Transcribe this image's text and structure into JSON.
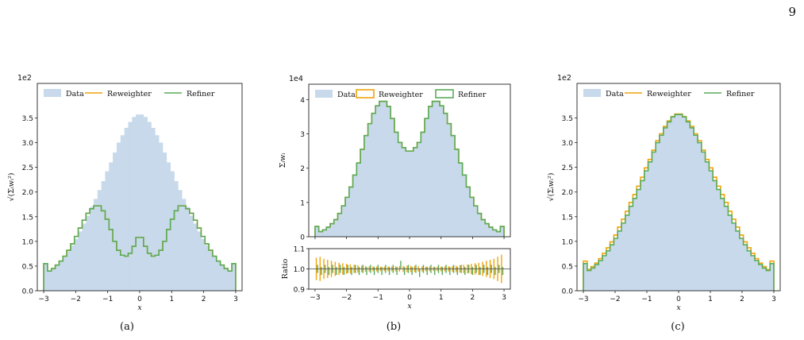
{
  "page_number": "9",
  "colors": {
    "data_fill": "#c7d9ea",
    "reweighter": "#f0a30a",
    "refiner": "#5aab5a"
  },
  "captions": [
    "(a)",
    "(b)",
    "(c)"
  ],
  "chart_data": [
    {
      "id": "a",
      "type": "histogram-step",
      "ylabel": "√(Σᵢwᵢ²)",
      "xlabel": "x",
      "multiplier": "1e2",
      "xlim": [
        -3.2,
        3.2
      ],
      "ylim": [
        0,
        4.2
      ],
      "xticks": [
        -3,
        -2,
        -1,
        0,
        1,
        2,
        3
      ],
      "xtick_labels": [
        "−3",
        "−2",
        "−1",
        "0",
        "1",
        "2",
        "3"
      ],
      "yticks": [
        0,
        0.5,
        1,
        1.5,
        2,
        2.5,
        3,
        3.5
      ],
      "ytick_labels": [
        "0.0",
        "0.5",
        "1.0",
        "1.5",
        "2.0",
        "2.5",
        "3.0",
        "3.5"
      ],
      "legend": [
        "Data",
        "Reweighter",
        "Refiner"
      ],
      "legend_loc": "top",
      "bins": {
        "start": -3,
        "end": 3,
        "count": 50
      },
      "series": [
        {
          "name": "Data",
          "style": "filled",
          "values": [
            0.55,
            0.4,
            0.46,
            0.52,
            0.6,
            0.7,
            0.8,
            0.92,
            1.05,
            1.2,
            1.36,
            1.52,
            1.7,
            1.86,
            2.04,
            2.22,
            2.42,
            2.6,
            2.8,
            3.0,
            3.15,
            3.3,
            3.42,
            3.52,
            3.57,
            3.57,
            3.52,
            3.42,
            3.3,
            3.15,
            3.0,
            2.8,
            2.6,
            2.42,
            2.22,
            2.04,
            1.86,
            1.7,
            1.52,
            1.36,
            1.2,
            1.05,
            0.92,
            0.8,
            0.7,
            0.6,
            0.52,
            0.46,
            0.4,
            0.55
          ]
        },
        {
          "name": "Reweighter",
          "style": "step",
          "values": [
            0.55,
            0.4,
            0.45,
            0.52,
            0.6,
            0.7,
            0.82,
            0.95,
            1.1,
            1.27,
            1.43,
            1.57,
            1.66,
            1.72,
            1.72,
            1.62,
            1.45,
            1.24,
            1.0,
            0.82,
            0.72,
            0.7,
            0.76,
            0.9,
            1.08,
            1.08,
            0.9,
            0.76,
            0.7,
            0.72,
            0.82,
            1.0,
            1.24,
            1.45,
            1.62,
            1.72,
            1.72,
            1.66,
            1.57,
            1.43,
            1.27,
            1.1,
            0.95,
            0.82,
            0.7,
            0.6,
            0.52,
            0.45,
            0.4,
            0.55
          ]
        },
        {
          "name": "Refiner",
          "style": "step",
          "values": [
            0.55,
            0.4,
            0.45,
            0.52,
            0.6,
            0.7,
            0.82,
            0.95,
            1.1,
            1.27,
            1.43,
            1.57,
            1.66,
            1.72,
            1.72,
            1.62,
            1.45,
            1.24,
            1.0,
            0.82,
            0.72,
            0.7,
            0.76,
            0.9,
            1.08,
            1.08,
            0.9,
            0.76,
            0.7,
            0.72,
            0.82,
            1.0,
            1.24,
            1.45,
            1.62,
            1.72,
            1.72,
            1.66,
            1.57,
            1.43,
            1.27,
            1.1,
            0.95,
            0.82,
            0.7,
            0.6,
            0.52,
            0.45,
            0.4,
            0.55
          ]
        }
      ]
    },
    {
      "id": "b",
      "type": "histogram-step",
      "ylabel": "Σᵢwᵢ",
      "xlabel": "x",
      "multiplier": "1e4",
      "xlim": [
        -3.2,
        3.2
      ],
      "ylim": [
        0,
        4.45
      ],
      "xticks": [
        -3,
        -2,
        -1,
        0,
        1,
        2,
        3
      ],
      "xtick_labels": [
        "−3",
        "−2",
        "−1",
        "0",
        "1",
        "2",
        "3"
      ],
      "yticks": [
        0,
        1,
        2,
        3,
        4
      ],
      "ytick_labels": [
        "0",
        "1",
        "2",
        "3",
        "4"
      ],
      "legend": [
        "Data",
        "Reweighter",
        "Refiner"
      ],
      "legend_loc": "top",
      "bins": {
        "start": -3,
        "end": 3,
        "count": 50
      },
      "series": [
        {
          "name": "Data",
          "style": "filled",
          "values": [
            0.3,
            0.15,
            0.2,
            0.28,
            0.38,
            0.5,
            0.68,
            0.9,
            1.15,
            1.45,
            1.8,
            2.15,
            2.55,
            2.95,
            3.3,
            3.6,
            3.82,
            3.95,
            3.95,
            3.8,
            3.45,
            3.05,
            2.75,
            2.6,
            2.5,
            2.5,
            2.6,
            2.75,
            3.05,
            3.45,
            3.8,
            3.95,
            3.95,
            3.82,
            3.6,
            3.3,
            2.95,
            2.55,
            2.15,
            1.8,
            1.45,
            1.15,
            0.9,
            0.68,
            0.5,
            0.38,
            0.28,
            0.2,
            0.15,
            0.3
          ]
        },
        {
          "name": "Reweighter",
          "style": "step",
          "values": [
            0.3,
            0.15,
            0.2,
            0.28,
            0.38,
            0.5,
            0.68,
            0.9,
            1.15,
            1.45,
            1.8,
            2.15,
            2.55,
            2.95,
            3.3,
            3.6,
            3.82,
            3.95,
            3.95,
            3.8,
            3.45,
            3.05,
            2.75,
            2.6,
            2.5,
            2.5,
            2.6,
            2.75,
            3.05,
            3.45,
            3.8,
            3.95,
            3.95,
            3.82,
            3.6,
            3.3,
            2.95,
            2.55,
            2.15,
            1.8,
            1.45,
            1.15,
            0.9,
            0.68,
            0.5,
            0.38,
            0.28,
            0.2,
            0.15,
            0.3
          ]
        },
        {
          "name": "Refiner",
          "style": "step",
          "values": [
            0.3,
            0.15,
            0.2,
            0.28,
            0.38,
            0.5,
            0.68,
            0.9,
            1.15,
            1.45,
            1.8,
            2.15,
            2.55,
            2.95,
            3.3,
            3.6,
            3.82,
            3.95,
            3.95,
            3.8,
            3.45,
            3.05,
            2.75,
            2.6,
            2.5,
            2.5,
            2.6,
            2.75,
            3.05,
            3.45,
            3.8,
            3.95,
            3.95,
            3.82,
            3.6,
            3.3,
            2.95,
            2.55,
            2.15,
            1.8,
            1.45,
            1.15,
            0.9,
            0.68,
            0.5,
            0.38,
            0.28,
            0.2,
            0.15,
            0.3
          ]
        }
      ],
      "ratio_panel": {
        "ylabel": "Ratio",
        "ylim": [
          0.9,
          1.1
        ],
        "yticks": [
          0.9,
          1.0,
          1.1
        ],
        "ytick_labels": [
          "0.9",
          "1.0",
          "1.1"
        ],
        "reference_line": 1.0,
        "series": [
          {
            "name": "Reweighter",
            "style": "errorbar",
            "values": [
              1.0,
              1.0,
              1.0,
              1.0,
              1.0,
              1.0,
              1.0,
              1.0,
              1.0,
              1.0,
              1.0,
              1.0,
              1.0,
              1.0,
              1.0,
              1.0,
              1.0,
              1.0,
              1.0,
              1.0,
              1.0,
              1.0,
              1.0,
              1.0,
              1.0,
              1.0,
              1.0,
              1.0,
              1.0,
              1.0,
              1.0,
              1.0,
              1.0,
              1.0,
              1.0,
              1.0,
              1.0,
              1.0,
              1.0,
              1.0,
              1.0,
              1.0,
              1.0,
              1.0,
              1.0,
              1.0,
              1.0,
              1.0,
              1.0,
              1.0
            ],
            "errors": [
              0.055,
              0.06,
              0.05,
              0.045,
              0.04,
              0.035,
              0.03,
              0.028,
              0.025,
              0.022,
              0.02,
              0.018,
              0.016,
              0.014,
              0.013,
              0.012,
              0.012,
              0.011,
              0.011,
              0.012,
              0.012,
              0.013,
              0.014,
              0.015,
              0.016,
              0.016,
              0.015,
              0.014,
              0.013,
              0.012,
              0.012,
              0.011,
              0.011,
              0.012,
              0.012,
              0.013,
              0.014,
              0.016,
              0.018,
              0.02,
              0.022,
              0.025,
              0.028,
              0.03,
              0.035,
              0.04,
              0.045,
              0.05,
              0.06,
              0.07
            ]
          },
          {
            "name": "Refiner",
            "style": "errorbar",
            "values": [
              1.0,
              0.99,
              1.0,
              0.99,
              1.0,
              0.99,
              1.0,
              0.99,
              1.0,
              0.99,
              1.0,
              0.99,
              1.0,
              0.99,
              1.0,
              0.99,
              1.0,
              0.99,
              1.0,
              0.99,
              1.0,
              0.99,
              1.02,
              0.99,
              1.0,
              0.99,
              1.0,
              0.98,
              1.0,
              0.99,
              1.0,
              0.99,
              1.0,
              0.99,
              1.0,
              0.99,
              1.0,
              0.99,
              1.0,
              0.99,
              1.0,
              0.99,
              1.0,
              0.99,
              1.0,
              0.99,
              1.0,
              0.99,
              1.0,
              0.99
            ],
            "errors": [
              0.02,
              0.02,
              0.02,
              0.02,
              0.02,
              0.02,
              0.02,
              0.02,
              0.02,
              0.02,
              0.02,
              0.02,
              0.02,
              0.02,
              0.02,
              0.02,
              0.02,
              0.02,
              0.02,
              0.02,
              0.02,
              0.02,
              0.02,
              0.02,
              0.02,
              0.02,
              0.02,
              0.02,
              0.02,
              0.02,
              0.02,
              0.02,
              0.02,
              0.02,
              0.02,
              0.02,
              0.02,
              0.02,
              0.02,
              0.02,
              0.02,
              0.02,
              0.02,
              0.02,
              0.02,
              0.02,
              0.02,
              0.02,
              0.02,
              0.02
            ]
          }
        ]
      }
    },
    {
      "id": "c",
      "type": "histogram-step",
      "ylabel": "√(Σᵢwᵢ²)",
      "xlabel": "x",
      "multiplier": "1e2",
      "xlim": [
        -3.2,
        3.2
      ],
      "ylim": [
        0,
        4.2
      ],
      "xticks": [
        -3,
        -2,
        -1,
        0,
        1,
        2,
        3
      ],
      "xtick_labels": [
        "−3",
        "−2",
        "−1",
        "0",
        "1",
        "2",
        "3"
      ],
      "yticks": [
        0,
        0.5,
        1,
        1.5,
        2,
        2.5,
        3,
        3.5
      ],
      "ytick_labels": [
        "0.0",
        "0.5",
        "1.0",
        "1.5",
        "2.0",
        "2.5",
        "3.0",
        "3.5"
      ],
      "legend": [
        "Data",
        "Reweighter",
        "Refiner"
      ],
      "legend_loc": "top",
      "bins": {
        "start": -3,
        "end": 3,
        "count": 50
      },
      "series": [
        {
          "name": "Data",
          "style": "filled",
          "values": [
            0.55,
            0.4,
            0.46,
            0.52,
            0.6,
            0.7,
            0.8,
            0.92,
            1.05,
            1.2,
            1.36,
            1.52,
            1.7,
            1.86,
            2.04,
            2.22,
            2.42,
            2.6,
            2.8,
            3.0,
            3.15,
            3.3,
            3.42,
            3.52,
            3.57,
            3.57,
            3.52,
            3.42,
            3.3,
            3.15,
            3.0,
            2.8,
            2.6,
            2.42,
            2.22,
            2.04,
            1.86,
            1.7,
            1.52,
            1.36,
            1.2,
            1.05,
            0.92,
            0.8,
            0.7,
            0.6,
            0.52,
            0.46,
            0.4,
            0.55
          ]
        },
        {
          "name": "Reweighter",
          "style": "step",
          "values": [
            0.6,
            0.43,
            0.49,
            0.56,
            0.65,
            0.76,
            0.87,
            0.99,
            1.13,
            1.29,
            1.45,
            1.61,
            1.79,
            1.95,
            2.12,
            2.3,
            2.49,
            2.66,
            2.85,
            3.04,
            3.18,
            3.33,
            3.44,
            3.53,
            3.58,
            3.58,
            3.53,
            3.44,
            3.33,
            3.18,
            3.04,
            2.85,
            2.66,
            2.49,
            2.3,
            2.12,
            1.95,
            1.79,
            1.61,
            1.45,
            1.29,
            1.13,
            0.99,
            0.87,
            0.76,
            0.65,
            0.56,
            0.49,
            0.43,
            0.6
          ]
        },
        {
          "name": "Refiner",
          "style": "step",
          "values": [
            0.55,
            0.41,
            0.46,
            0.53,
            0.61,
            0.71,
            0.81,
            0.93,
            1.06,
            1.21,
            1.37,
            1.53,
            1.71,
            1.87,
            2.05,
            2.23,
            2.43,
            2.61,
            2.81,
            3.0,
            3.15,
            3.3,
            3.42,
            3.52,
            3.57,
            3.57,
            3.52,
            3.42,
            3.3,
            3.15,
            3.0,
            2.81,
            2.61,
            2.43,
            2.23,
            2.05,
            1.87,
            1.71,
            1.53,
            1.37,
            1.21,
            1.06,
            0.93,
            0.81,
            0.71,
            0.61,
            0.53,
            0.46,
            0.41,
            0.55
          ]
        }
      ]
    }
  ]
}
